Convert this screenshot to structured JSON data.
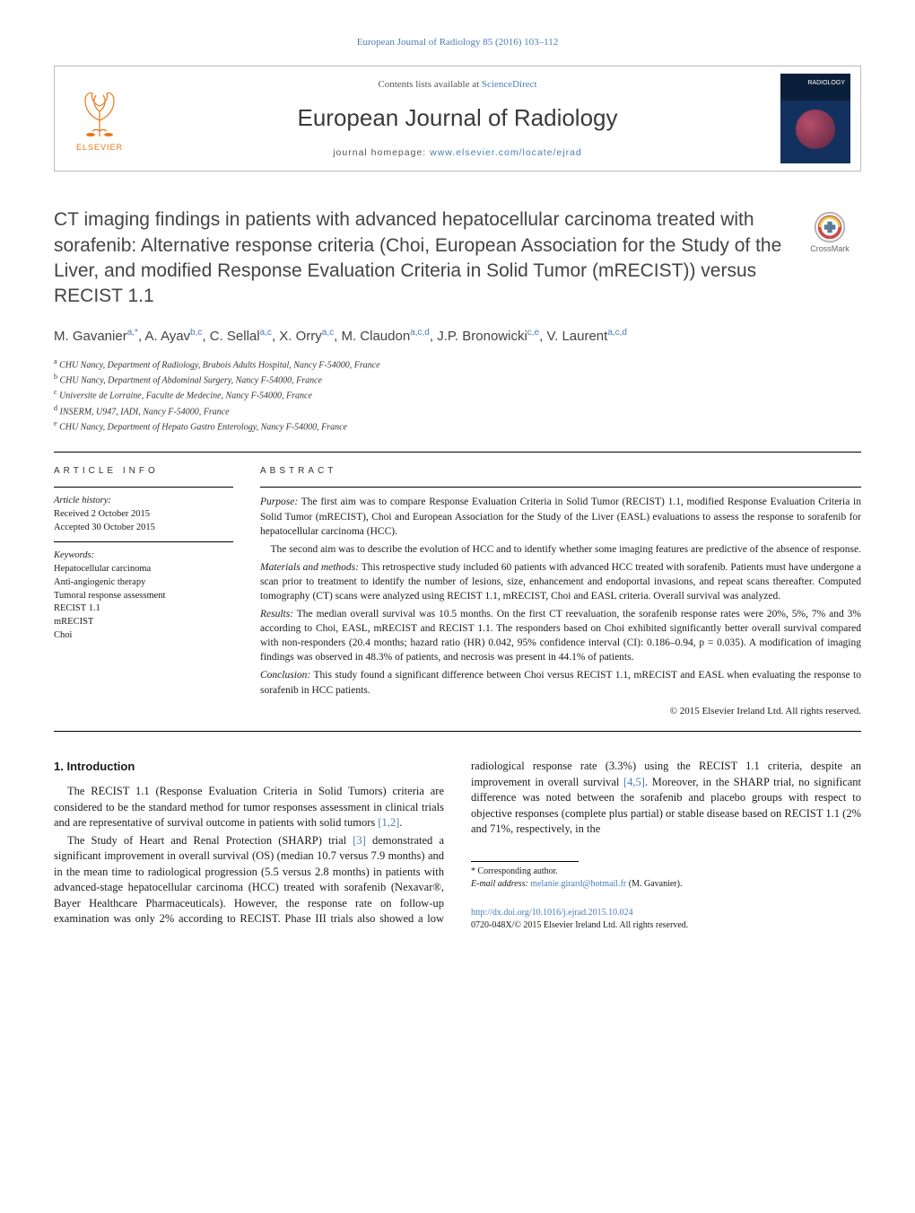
{
  "journal_ref": "European Journal of Radiology 85 (2016) 103–112",
  "masthead": {
    "contents_pre": "Contents lists available at ",
    "contents_link": "ScienceDirect",
    "journal_name": "European Journal of Radiology",
    "homepage_pre": "journal homepage: ",
    "homepage_link": "www.elsevier.com/locate/ejrad",
    "elsevier_label": "ELSEVIER",
    "cover_label": "RADIOLOGY"
  },
  "crossmark_label": "CrossMark",
  "title": "CT imaging findings in patients with advanced hepatocellular carcinoma treated with sorafenib: Alternative response criteria (Choi, European Association for the Study of the Liver, and modified Response Evaluation Criteria in Solid Tumor (mRECIST)) versus RECIST 1.1",
  "authors_html": "M. Gavanier<sup>a,*</sup>, A. Ayav<sup>b,c</sup>, C. Sellal<sup>a,c</sup>, X. Orry<sup>a,c</sup>, M. Claudon<sup>a,c,d</sup>, J.P. Bronowicki<sup>c,e</sup>, V. Laurent<sup>a,c,d</sup>",
  "affiliations": [
    {
      "sup": "a",
      "text": "CHU Nancy, Department of Radiology, Brabois Adults Hospital, Nancy F-54000, France"
    },
    {
      "sup": "b",
      "text": "CHU Nancy, Department of Abdominal Surgery, Nancy F-54000, France"
    },
    {
      "sup": "c",
      "text": "Universite de Lorraine, Faculte de Medecine, Nancy F-54000, France"
    },
    {
      "sup": "d",
      "text": "INSERM, U947, IADI, Nancy F-54000, France"
    },
    {
      "sup": "e",
      "text": "CHU Nancy, Department of Hepato Gastro Enterology, Nancy F-54000, France"
    }
  ],
  "article_info": {
    "heading": "article info",
    "history_label": "Article history:",
    "received": "Received 2 October 2015",
    "accepted": "Accepted 30 October 2015",
    "keywords_label": "Keywords:",
    "keywords": [
      "Hepatocellular carcinoma",
      "Anti-angiogenic therapy",
      "Tumoral response assessment",
      "RECIST 1.1",
      "mRECIST",
      "Choi"
    ]
  },
  "abstract": {
    "heading": "abstract",
    "purpose_label": "Purpose:",
    "purpose1": "The first aim was to compare Response Evaluation Criteria in Solid Tumor (RECIST) 1.1, modified Response Evaluation Criteria in Solid Tumor (mRECIST), Choi and European Association for the Study of the Liver (EASL) evaluations to assess the response to sorafenib for hepatocellular carcinoma (HCC).",
    "purpose2": "The second aim was to describe the evolution of HCC and to identify whether some imaging features are predictive of the absence of response.",
    "methods_label": "Materials and methods:",
    "methods": "This retrospective study included 60 patients with advanced HCC treated with sorafenib. Patients must have undergone a scan prior to treatment to identify the number of lesions, size, enhancement and endoportal invasions, and repeat scans thereafter. Computed tomography (CT) scans were analyzed using RECIST 1.1, mRECIST, Choi and EASL criteria. Overall survival was analyzed.",
    "results_label": "Results:",
    "results": "The median overall survival was 10.5 months. On the first CT reevaluation, the sorafenib response rates were 20%, 5%, 7% and 3% according to Choi, EASL, mRECIST and RECIST 1.1. The responders based on Choi exhibited significantly better overall survival compared with non-responders (20.4 months; hazard ratio (HR) 0.042, 95% confidence interval (CI): 0.186–0.94, p = 0.035). A modification of imaging findings was observed in 48.3% of patients, and necrosis was present in 44.1% of patients.",
    "conclusion_label": "Conclusion:",
    "conclusion": "This study found a significant difference between Choi versus RECIST 1.1, mRECIST and EASL when evaluating the response to sorafenib in HCC patients.",
    "copyright": "© 2015 Elsevier Ireland Ltd. All rights reserved."
  },
  "intro": {
    "heading": "1. Introduction",
    "p1_pre": "The RECIST 1.1 (Response Evaluation Criteria in Solid Tumors) criteria are considered to be the standard method for tumor responses assessment in clinical trials and are representative of survival outcome in patients with solid tumors ",
    "p1_cite": "[1,2]",
    "p1_post": ".",
    "p2_pre": "The Study of Heart and Renal Protection (SHARP) trial ",
    "p2_cite": "[3]",
    "p2_mid": " demonstrated a significant improvement in overall survival (OS) (median 10.7 versus 7.9 months) and in the mean time to radiological progression (5.5 versus 2.8 months) in patients with advanced-stage hepatocellular carcinoma (HCC) treated with sorafenib (Nexavar®, Bayer Healthcare Pharmaceuticals). However, the response rate on follow-up examination was only 2% according to RECIST. Phase III trials also showed a low radiological response rate (3.3%) using the RECIST 1.1 criteria, despite an improvement in overall survival ",
    "p2_cite2": "[4,5]",
    "p2_post": ". Moreover, in the SHARP trial, no significant difference was noted between the sorafenib and placebo groups with respect to objective responses (complete plus partial) or stable disease based on RECIST 1.1 (2% and 71%, respectively, in the"
  },
  "footer": {
    "corr_label": "* Corresponding author.",
    "email_label": "E-mail address:",
    "email": "melanie.girard@hotmail.fr",
    "email_who": "(M. Gavanier).",
    "doi": "http://dx.doi.org/10.1016/j.ejrad.2015.10.024",
    "issn_line": "0720-048X/© 2015 Elsevier Ireland Ltd. All rights reserved."
  },
  "colors": {
    "link": "#4a7db8",
    "elsevier_orange": "#e67817",
    "text": "#1a1a1a",
    "heading_gray": "#444444"
  }
}
